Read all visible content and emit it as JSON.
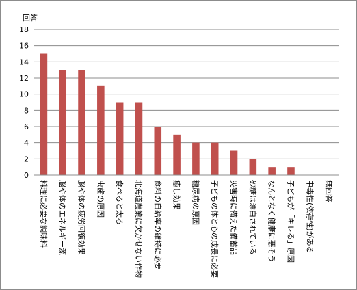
{
  "chart_data": {
    "type": "bar",
    "ylabel": "回答",
    "ylim": [
      0,
      18
    ],
    "ystep": 2,
    "grid": true,
    "bar_color": "#c0504d",
    "categories": [
      "料理に必要な調味料",
      "脳や体のエネルギー源",
      "脳や体の疲労回復効果",
      "虫歯の原因",
      "食べると太る",
      "北海道農業に欠かせない作物",
      "食料の自給率の維持に必要",
      "癒し効果",
      "糖尿病の原因",
      "子どもの体と心の成長に必要",
      "災害時に備えた備蓄品",
      "砂糖は漂白されている",
      "なんとなく健康に悪そう",
      "子どもが「キレる」原因",
      "中毒性(依存性)がある",
      "無回答"
    ],
    "values": [
      15,
      13,
      13,
      11,
      9,
      9,
      6,
      5,
      4,
      4,
      3,
      2,
      1,
      1,
      0,
      0
    ]
  }
}
